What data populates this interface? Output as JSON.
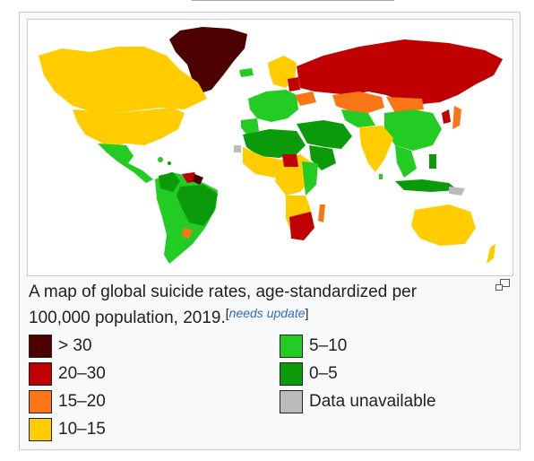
{
  "caption": {
    "text": "A map of global suicide rates, age-standardized per 100,000 population, 2019.",
    "note": "needs update"
  },
  "icons": {
    "magnify": "magnify-clip-icon"
  },
  "colors": {
    "gt30": "#4d0000",
    "c20_30": "#c00000",
    "c15_20": "#f97516",
    "c10_15": "#ffcc00",
    "c5_10": "#22cc22",
    "c0_5": "#0a9a0a",
    "na": "#bbbbbb",
    "ocean": "#ffffff"
  },
  "legend": {
    "col1": [
      {
        "label": "> 30",
        "color": "#4d0000"
      },
      {
        "label": "20–30",
        "color": "#c00000"
      },
      {
        "label": "15–20",
        "color": "#f97516"
      },
      {
        "label": "10–15",
        "color": "#ffcc00"
      }
    ],
    "col2": [
      {
        "label": "5–10",
        "color": "#22cc22"
      },
      {
        "label": "0–5",
        "color": "#0a9a0a"
      },
      {
        "label": "Data unavailable",
        "color": "#bbbbbb"
      }
    ]
  }
}
